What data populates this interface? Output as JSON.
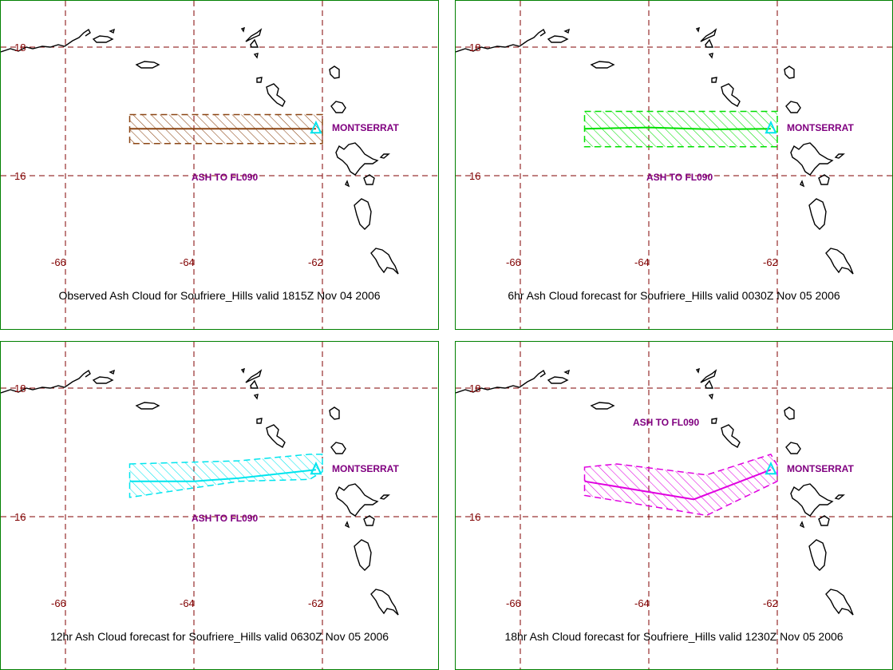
{
  "volcano": "Soufriere_Hills",
  "grid_labels": {
    "lat_18": "18",
    "lat_16": "16",
    "lon_66": "-66",
    "lon_64": "-64",
    "lon_62": "-62"
  },
  "colors": {
    "grid": "#800000",
    "coast": "#000000",
    "label": "#800080",
    "frame": "#008000",
    "vent_marker": "#00e5ee"
  },
  "icons": {
    "vent": "volcano-triangle-icon"
  },
  "panels": [
    {
      "caption": "Observed Ash Cloud for Soufriere_Hills valid 1815Z Nov 04 2006",
      "ash_label": "ASH TO FL090",
      "place_label": "MONTSERRAT",
      "cloud_color": "#8b4513",
      "cloud_polygon": [
        [
          -65.0,
          16.95
        ],
        [
          -62.0,
          16.95
        ],
        [
          -62.0,
          16.5
        ],
        [
          -65.0,
          16.5
        ]
      ],
      "axis_line": [
        [
          -65.0,
          16.73
        ],
        [
          -62.1,
          16.73
        ]
      ]
    },
    {
      "caption": "6hr Ash Cloud forecast for Soufriere_Hills valid 0030Z Nov 05 2006",
      "ash_label": "ASH TO FL090",
      "place_label": "MONTSERRAT",
      "cloud_color": "#00e000",
      "cloud_polygon": [
        [
          -65.0,
          17.0
        ],
        [
          -62.0,
          17.0
        ],
        [
          -62.0,
          16.45
        ],
        [
          -65.0,
          16.45
        ]
      ],
      "axis_line": [
        [
          -65.0,
          16.73
        ],
        [
          -64.0,
          16.75
        ],
        [
          -63.0,
          16.72
        ],
        [
          -62.1,
          16.73
        ]
      ]
    },
    {
      "caption": "12hr Ash Cloud forecast for Soufriere_Hills valid 0630Z Nov 05 2006",
      "ash_label": "ASH TO FL090",
      "place_label": "MONTSERRAT",
      "cloud_color": "#00e5ee",
      "cloud_polygon": [
        [
          -65.0,
          16.82
        ],
        [
          -63.3,
          16.87
        ],
        [
          -62.2,
          16.97
        ],
        [
          -62.0,
          16.97
        ],
        [
          -62.0,
          16.7
        ],
        [
          -62.2,
          16.58
        ],
        [
          -63.3,
          16.55
        ],
        [
          -65.0,
          16.3
        ]
      ],
      "axis_line": [
        [
          -65.0,
          16.55
        ],
        [
          -64.0,
          16.55
        ],
        [
          -63.3,
          16.6
        ],
        [
          -62.1,
          16.73
        ]
      ]
    },
    {
      "caption": "18hr Ash Cloud forecast for Soufriere_Hills valid 1230Z Nov 05 2006",
      "ash_label": "ASH TO FL090",
      "place_label": "MONTSERRAT",
      "cloud_color": "#e000e0",
      "cloud_polygon": [
        [
          -65.0,
          16.77
        ],
        [
          -64.5,
          16.82
        ],
        [
          -63.1,
          16.65
        ],
        [
          -62.1,
          16.97
        ],
        [
          -62.0,
          16.8
        ],
        [
          -62.0,
          16.55
        ],
        [
          -63.1,
          16.02
        ],
        [
          -65.0,
          16.33
        ]
      ],
      "axis_line": [
        [
          -65.0,
          16.55
        ],
        [
          -63.3,
          16.27
        ],
        [
          -62.1,
          16.73
        ]
      ]
    }
  ]
}
